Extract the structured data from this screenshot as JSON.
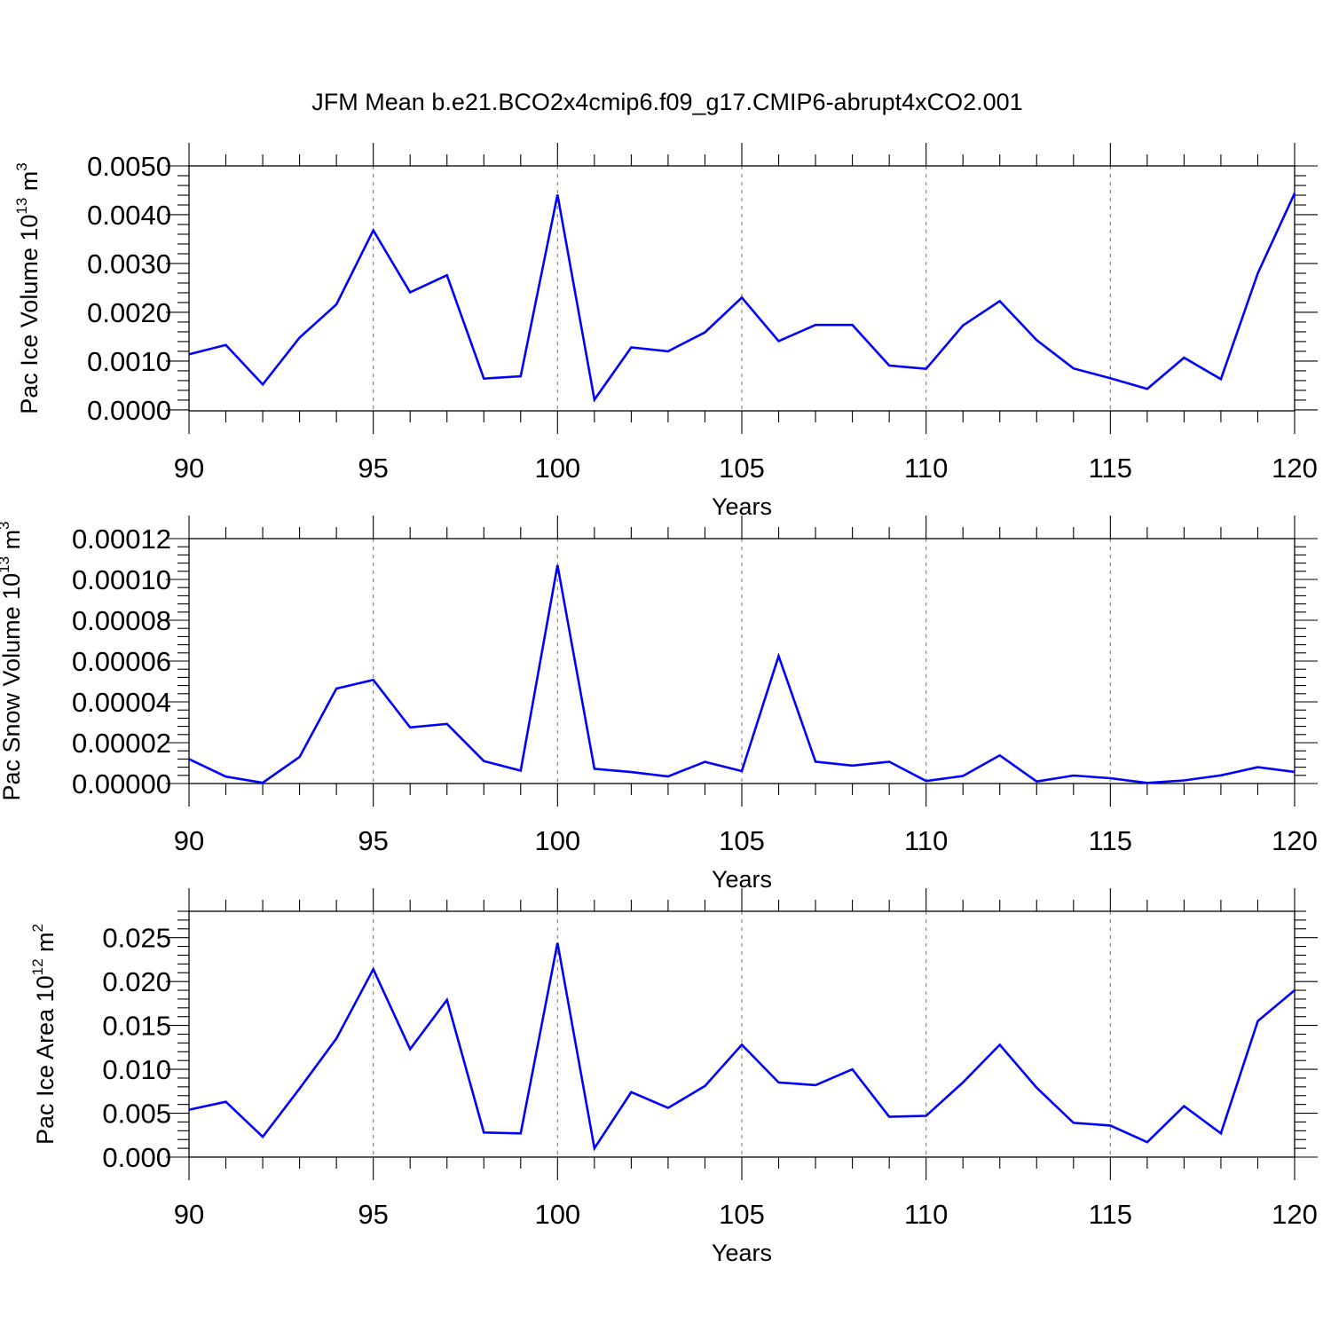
{
  "title": "JFM Mean b.e21.BCO2x4cmip6.f09_g17.CMIP6-abrupt4xCO2.001",
  "colors": {
    "line": "#0000ff",
    "axis": "#000000",
    "grid": "#888888"
  },
  "chart_data": [
    {
      "type": "line",
      "title": "JFM Mean b.e21.BCO2x4cmip6.f09_g17.CMIP6-abrupt4xCO2.001",
      "xlabel": "Years",
      "ylabel": {
        "text": "Pac Ice Volume 10",
        "exp": "13",
        "unit": " m",
        "unit_exp": "3"
      },
      "xlim": [
        90,
        120
      ],
      "ylim": [
        -2e-05,
        0.005
      ],
      "xticks": [
        90,
        95,
        100,
        105,
        110,
        115,
        120
      ],
      "xtick_labels": [
        "90",
        "95",
        "100",
        "105",
        "110",
        "115",
        "120"
      ],
      "yticks": [
        0,
        0.001,
        0.002,
        0.003,
        0.004,
        0.005
      ],
      "ytick_labels": [
        "0.0000",
        "0.0010",
        "0.0020",
        "0.0030",
        "0.0040",
        "0.0050"
      ],
      "grid": "vertical dashed at major x ticks",
      "x": [
        90,
        91,
        92,
        93,
        94,
        95,
        96,
        97,
        98,
        99,
        100,
        101,
        102,
        103,
        104,
        105,
        106,
        107,
        108,
        109,
        110,
        111,
        112,
        113,
        114,
        115,
        116,
        117,
        118,
        119,
        120
      ],
      "values": [
        0.00114,
        0.00133,
        0.00052,
        0.00148,
        0.00216,
        0.00368,
        0.00241,
        0.00276,
        0.00064,
        0.00069,
        0.00441,
        0.00021,
        0.00128,
        0.0012,
        0.00159,
        0.0023,
        0.00141,
        0.00174,
        0.00174,
        0.00091,
        0.00084,
        0.00173,
        0.00223,
        0.00143,
        0.00085,
        0.00065,
        0.00043,
        0.00107,
        0.00063,
        0.0028,
        0.00444
      ]
    },
    {
      "type": "line",
      "xlabel": "Years",
      "ylabel": {
        "text": "Pac Snow Volume 10",
        "exp": "13",
        "unit": " m",
        "unit_exp": "3"
      },
      "xlim": [
        90,
        120
      ],
      "ylim": [
        0,
        0.00012
      ],
      "xticks": [
        90,
        95,
        100,
        105,
        110,
        115,
        120
      ],
      "xtick_labels": [
        "90",
        "95",
        "100",
        "105",
        "110",
        "115",
        "120"
      ],
      "yticks": [
        0,
        2e-05,
        4e-05,
        6e-05,
        8e-05,
        0.0001,
        0.00012
      ],
      "ytick_labels": [
        "0.00000",
        "0.00002",
        "0.00004",
        "0.00006",
        "0.00008",
        "0.00010",
        "0.00012"
      ],
      "grid": "vertical dashed at major x ticks",
      "x": [
        90,
        91,
        92,
        93,
        94,
        95,
        96,
        97,
        98,
        99,
        100,
        101,
        102,
        103,
        104,
        105,
        106,
        107,
        108,
        109,
        110,
        111,
        112,
        113,
        114,
        115,
        116,
        117,
        118,
        119,
        120
      ],
      "values": [
        1.2e-05,
        3.4e-06,
        4e-07,
        1.3e-05,
        4.65e-05,
        5.08e-05,
        2.75e-05,
        2.92e-05,
        1.1e-05,
        6.3e-06,
        0.000107,
        7.2e-06,
        5.6e-06,
        3.5e-06,
        1.06e-05,
        6.1e-06,
        6.25e-05,
        1.07e-05,
        8.8e-06,
        1.07e-05,
        1.2e-06,
        3.7e-06,
        1.38e-05,
        1e-06,
        3.9e-06,
        2.6e-06,
        3e-07,
        1.5e-06,
        4e-06,
        8e-06,
        5.7e-06
      ]
    },
    {
      "type": "line",
      "xlabel": "Years",
      "ylabel": {
        "text": "Pac Ice Area 10",
        "exp": "12",
        "unit": " m",
        "unit_exp": "2"
      },
      "xlim": [
        90,
        120
      ],
      "ylim": [
        0,
        0.028
      ],
      "xticks": [
        90,
        95,
        100,
        105,
        110,
        115,
        120
      ],
      "xtick_labels": [
        "90",
        "95",
        "100",
        "105",
        "110",
        "115",
        "120"
      ],
      "yticks": [
        0,
        0.005,
        0.01,
        0.015,
        0.02,
        0.025
      ],
      "ytick_labels": [
        "0.000",
        "0.005",
        "0.010",
        "0.015",
        "0.020",
        "0.025"
      ],
      "grid": "vertical dashed at major x ticks",
      "x": [
        90,
        91,
        92,
        93,
        94,
        95,
        96,
        97,
        98,
        99,
        100,
        101,
        102,
        103,
        104,
        105,
        106,
        107,
        108,
        109,
        110,
        111,
        112,
        113,
        114,
        115,
        116,
        117,
        118,
        119,
        120
      ],
      "values": [
        0.0054,
        0.0063,
        0.0023,
        0.0078,
        0.0135,
        0.0214,
        0.0123,
        0.0179,
        0.0028,
        0.0027,
        0.0244,
        0.001,
        0.0074,
        0.0056,
        0.0081,
        0.0128,
        0.0085,
        0.0082,
        0.01,
        0.0046,
        0.0047,
        0.0085,
        0.0128,
        0.0079,
        0.0039,
        0.0036,
        0.0017,
        0.0058,
        0.0027,
        0.0155,
        0.019
      ]
    }
  ]
}
